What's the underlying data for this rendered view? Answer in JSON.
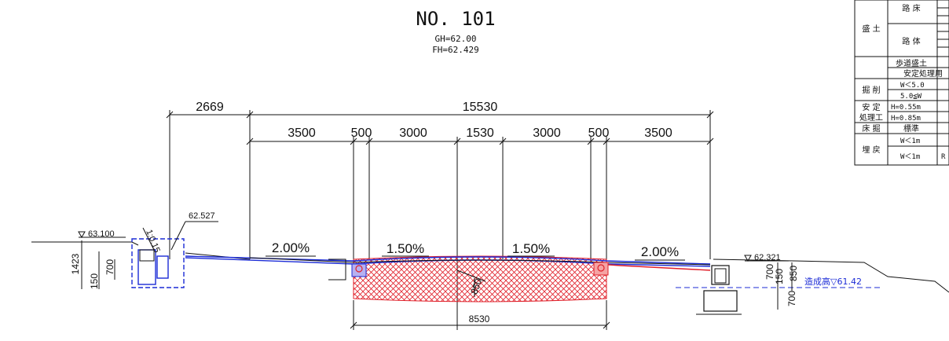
{
  "title": "NO. 101",
  "gh": "GH=62.00",
  "fh": "FH=62.429",
  "dimensions": {
    "overall": "15530",
    "left_offset": "2669",
    "segments": [
      "3500",
      "500",
      "3000",
      "1530",
      "3000",
      "500",
      "3500"
    ],
    "pavement_width": "8530"
  },
  "slopes": {
    "left_outer": "2.00%",
    "left_inner": "1.50%",
    "right_inner": "1.50%",
    "right_outer": "2.00%",
    "bank": "1:0.15"
  },
  "elevations": {
    "left_ground": "63.100",
    "left_top": "62.527",
    "right_edge": "62.321",
    "formation": "造成高▽61.42"
  },
  "small_dims": {
    "left_a": "1423",
    "left_b": "700",
    "left_c": "150",
    "center": "850",
    "right_a": "700",
    "right_b": "150",
    "right_c": "850",
    "right_d": "700"
  },
  "table": {
    "group_fill": "盛 土",
    "row_roadbed": "路 床",
    "row_body": "路 体",
    "row_sidewalk": "歩道盛土",
    "row_stabilized": "安定処理用",
    "group_cut": "掘 削",
    "cut_1": "W＜5.0",
    "cut_2": "5.0≦W",
    "group_stab_1": "安 定",
    "group_stab_2": "処理工",
    "stab_1": "H=0.55m",
    "stab_2": "H=0.85m",
    "group_floor": "床 掘",
    "floor_1": "標準",
    "group_backfill": "埋 戻",
    "back_1": "W＜1m",
    "back_2": "W＜1m",
    "back_2_extra": "R"
  },
  "colors": {
    "line": "#111111",
    "design_blue": "#1b2bd6",
    "hatch_red": "#e0202a"
  }
}
